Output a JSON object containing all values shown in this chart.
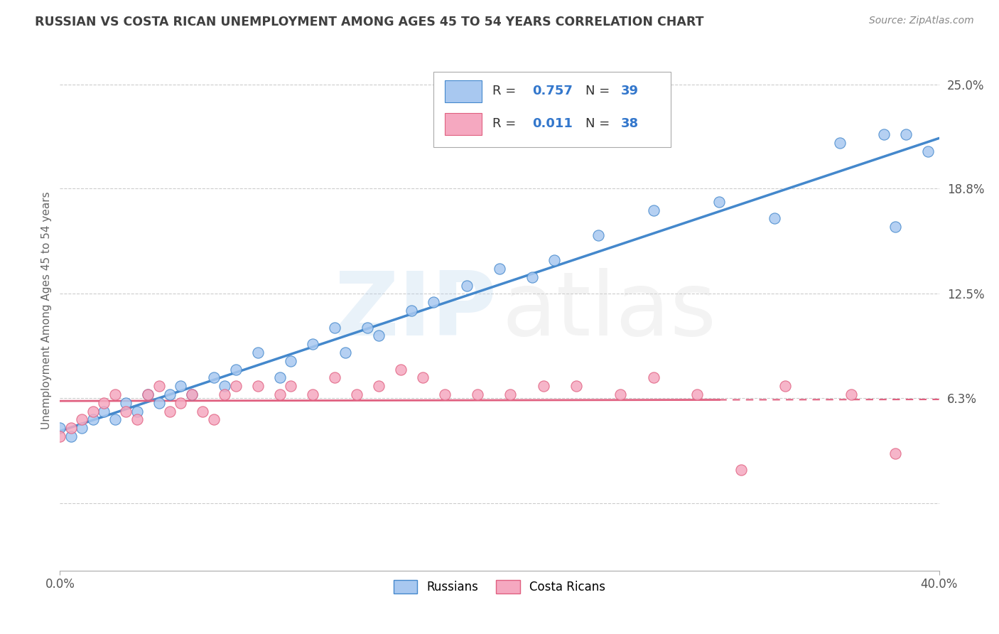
{
  "title": "RUSSIAN VS COSTA RICAN UNEMPLOYMENT AMONG AGES 45 TO 54 YEARS CORRELATION CHART",
  "source": "Source: ZipAtlas.com",
  "ylabel": "Unemployment Among Ages 45 to 54 years",
  "xlim": [
    0.0,
    0.4
  ],
  "ylim": [
    -0.04,
    0.27
  ],
  "yticks": [
    0.0,
    0.063,
    0.125,
    0.188,
    0.25
  ],
  "ytick_labels": [
    "",
    "6.3%",
    "12.5%",
    "18.8%",
    "25.0%"
  ],
  "russian_color": "#a8c8f0",
  "costa_rican_color": "#f5a8c0",
  "russian_line_color": "#4488cc",
  "costa_rican_line_color": "#e06080",
  "russians_scatter_x": [
    0.0,
    0.005,
    0.01,
    0.015,
    0.02,
    0.025,
    0.03,
    0.035,
    0.04,
    0.045,
    0.05,
    0.055,
    0.06,
    0.07,
    0.075,
    0.08,
    0.09,
    0.1,
    0.105,
    0.115,
    0.125,
    0.13,
    0.14,
    0.145,
    0.16,
    0.17,
    0.185,
    0.2,
    0.215,
    0.225,
    0.245,
    0.27,
    0.3,
    0.325,
    0.355,
    0.375,
    0.38,
    0.385,
    0.395
  ],
  "russians_scatter_y": [
    0.045,
    0.04,
    0.045,
    0.05,
    0.055,
    0.05,
    0.06,
    0.055,
    0.065,
    0.06,
    0.065,
    0.07,
    0.065,
    0.075,
    0.07,
    0.08,
    0.09,
    0.075,
    0.085,
    0.095,
    0.105,
    0.09,
    0.105,
    0.1,
    0.115,
    0.12,
    0.13,
    0.14,
    0.135,
    0.145,
    0.16,
    0.175,
    0.18,
    0.17,
    0.215,
    0.22,
    0.165,
    0.22,
    0.21
  ],
  "costa_rican_scatter_x": [
    0.0,
    0.005,
    0.01,
    0.015,
    0.02,
    0.025,
    0.03,
    0.035,
    0.04,
    0.045,
    0.05,
    0.055,
    0.06,
    0.065,
    0.07,
    0.075,
    0.08,
    0.09,
    0.1,
    0.105,
    0.115,
    0.125,
    0.135,
    0.145,
    0.155,
    0.165,
    0.175,
    0.19,
    0.205,
    0.22,
    0.235,
    0.255,
    0.27,
    0.29,
    0.31,
    0.33,
    0.36,
    0.38
  ],
  "costa_rican_scatter_y": [
    0.04,
    0.045,
    0.05,
    0.055,
    0.06,
    0.065,
    0.055,
    0.05,
    0.065,
    0.07,
    0.055,
    0.06,
    0.065,
    0.055,
    0.05,
    0.065,
    0.07,
    0.07,
    0.065,
    0.07,
    0.065,
    0.075,
    0.065,
    0.07,
    0.08,
    0.075,
    0.065,
    0.065,
    0.065,
    0.07,
    0.07,
    0.065,
    0.075,
    0.065,
    0.02,
    0.07,
    0.065,
    0.03
  ],
  "background_color": "#ffffff",
  "grid_color": "#cccccc",
  "title_color": "#404040",
  "source_color": "#888888"
}
